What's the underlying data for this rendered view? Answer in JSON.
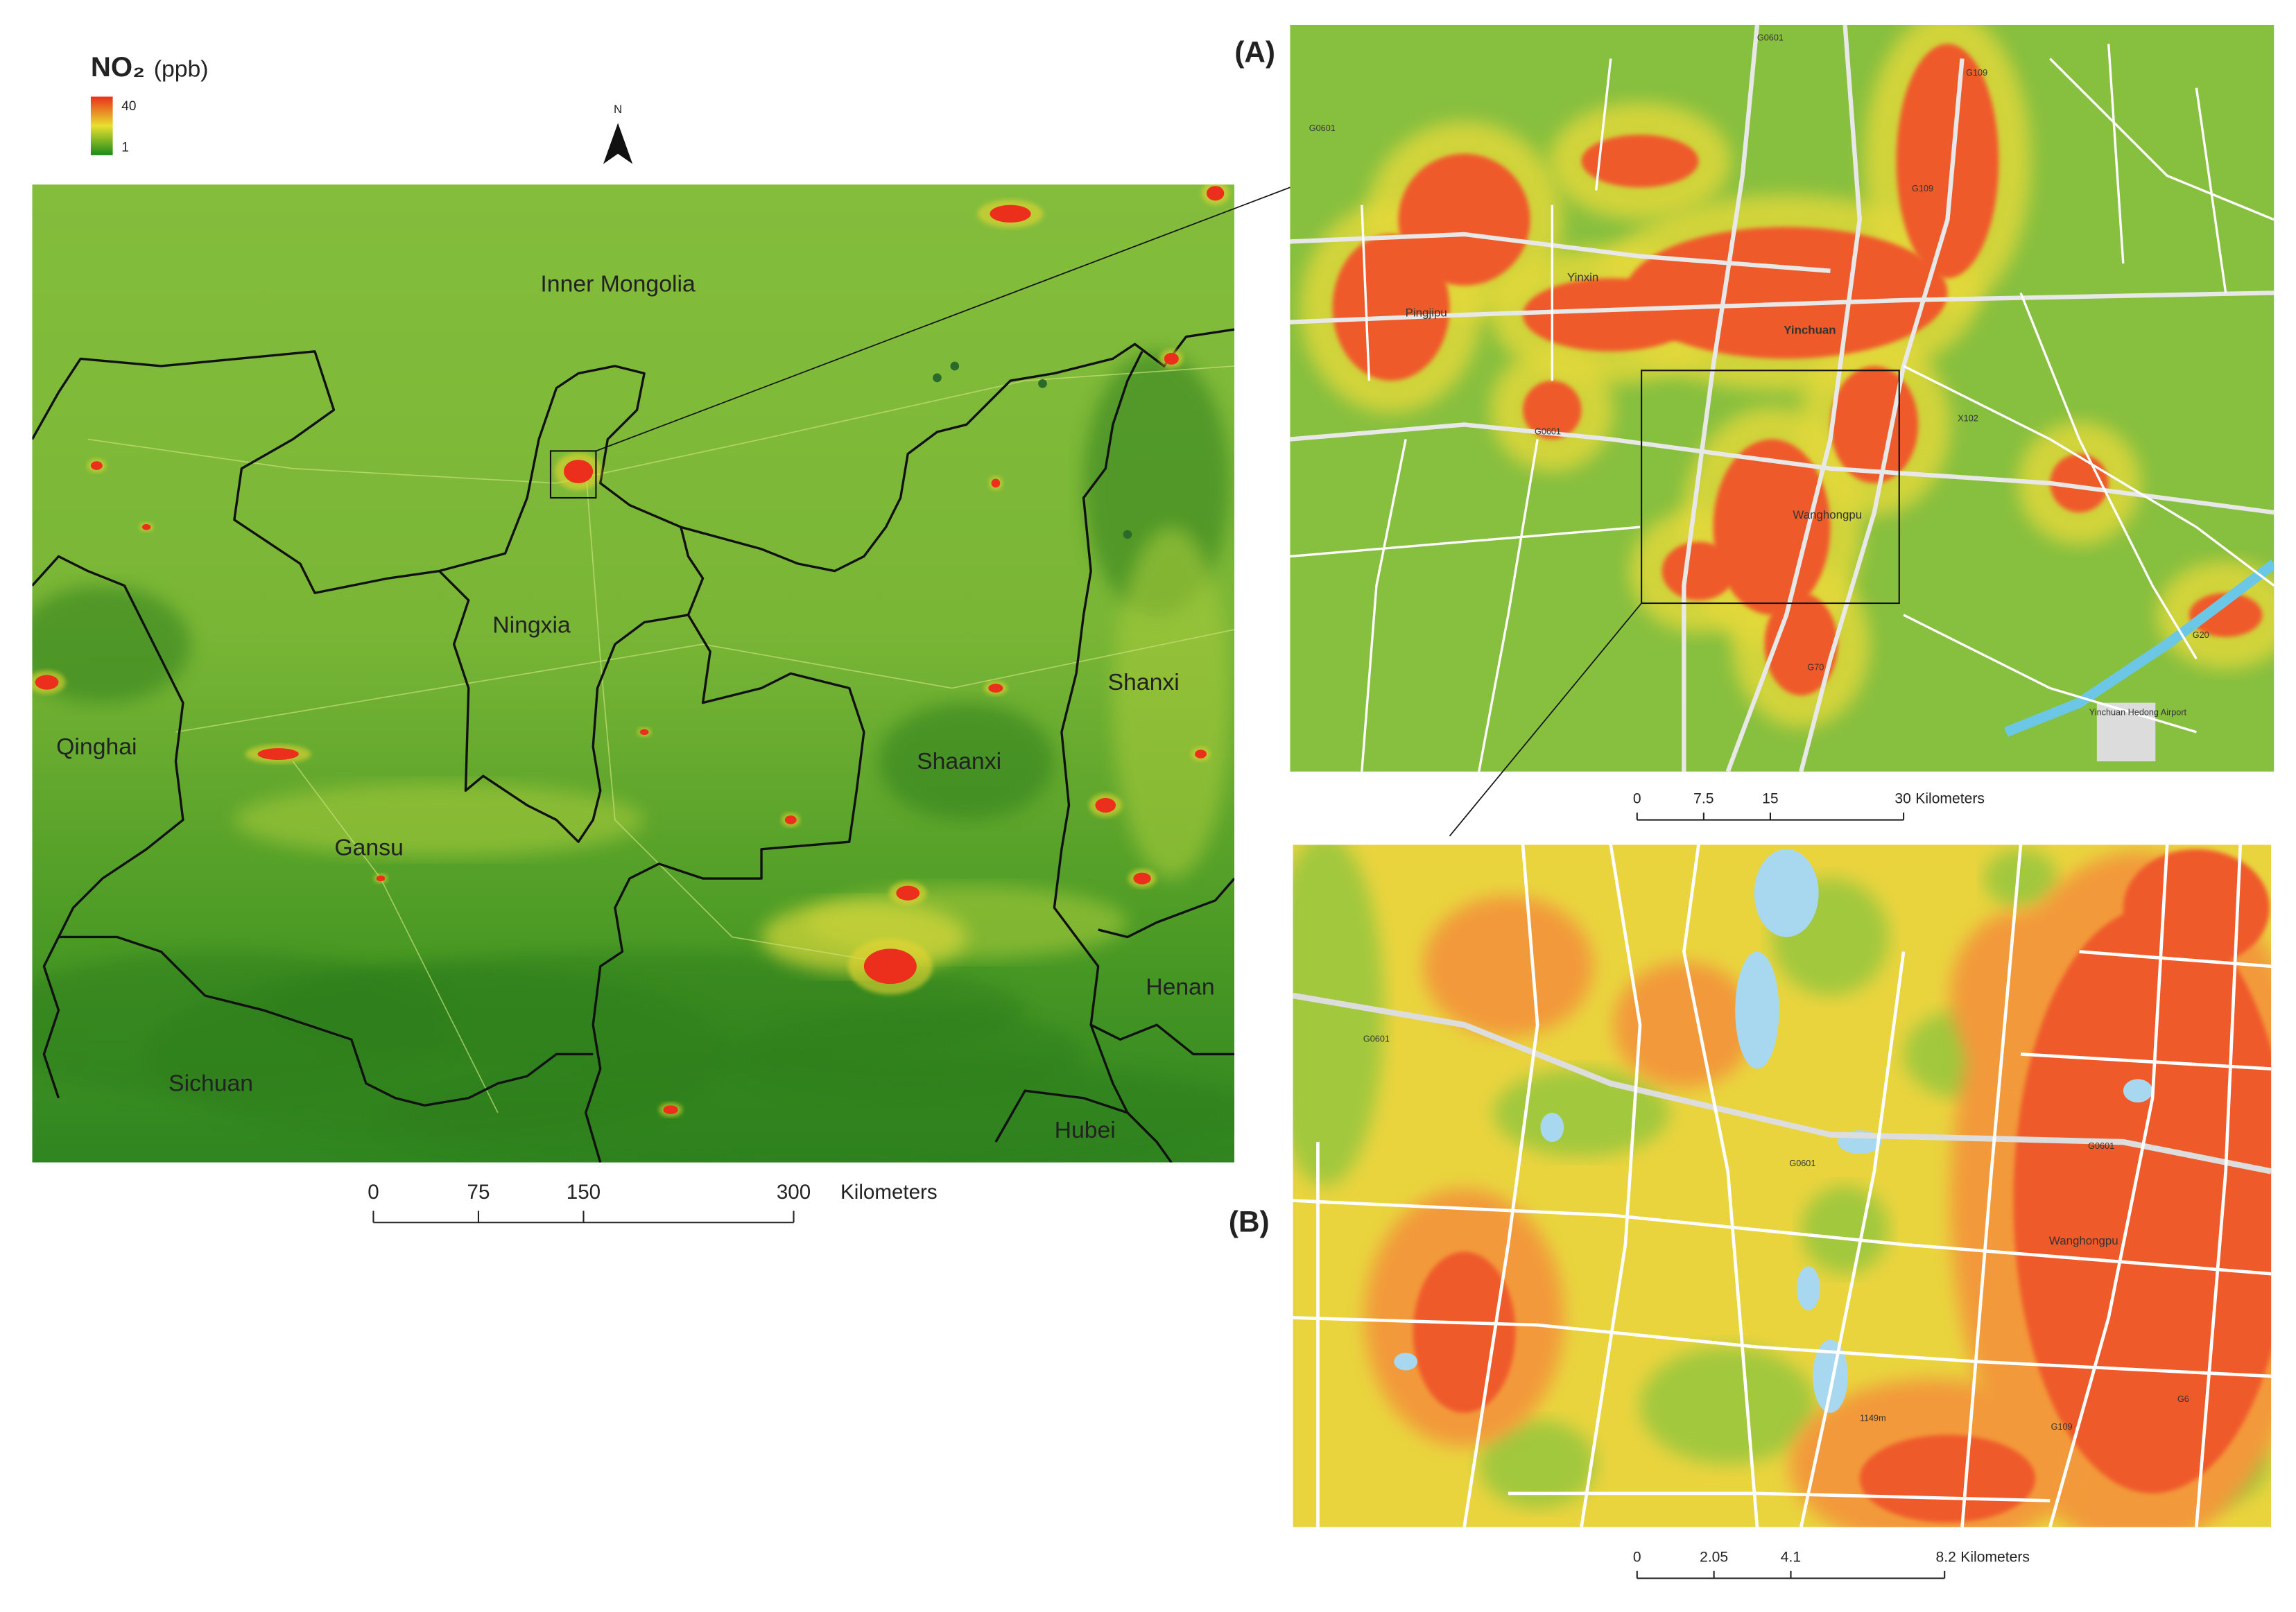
{
  "colorbar": {
    "title": "NO₂",
    "unit": "(ppb)",
    "max": 40,
    "min": 1
  },
  "north": "N",
  "main_map": {
    "regions": [
      "Inner Mongolia",
      "Ningxia",
      "Shanxi",
      "Qinghai",
      "Shaanxi",
      "Gansu",
      "Henan",
      "Sichuan",
      "Hubei"
    ],
    "scale_bar": {
      "ticks": [
        0,
        75,
        150,
        300
      ],
      "unit": "Kilometers"
    }
  },
  "inset_a": {
    "label": "(A)",
    "places": [
      "Yinchuan",
      "Yinxin",
      "Pingjipu",
      "Wanghongpu",
      "Yinchuan Hedong Airport"
    ],
    "roads": [
      "G0601",
      "G109",
      "G109",
      "G0601",
      "G0601",
      "X102",
      "G70",
      "G20"
    ],
    "scale_bar": {
      "ticks": [
        0,
        7.5,
        15,
        30
      ],
      "unit": "Kilometers"
    }
  },
  "inset_b": {
    "label": "(B)",
    "places": [
      "Wanghongpu",
      "1149m"
    ],
    "roads": [
      "G0601",
      "G0601",
      "G0601",
      "G109",
      "G6"
    ],
    "scale_bar": {
      "ticks": [
        0,
        2.05,
        4.1,
        8.2
      ],
      "unit": "Kilometers"
    }
  }
}
